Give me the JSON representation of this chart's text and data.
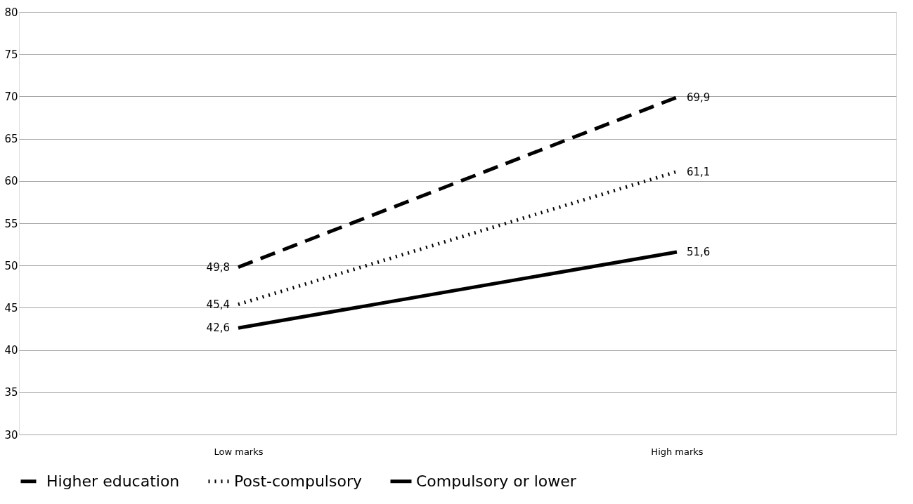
{
  "chart_data": {
    "type": "line",
    "categories": [
      "Low marks",
      "High marks"
    ],
    "series": [
      {
        "name": "Higher education",
        "color": "#000000",
        "line_style": "dashed",
        "values": [
          49.8,
          69.9
        ],
        "value_labels": [
          "49,8",
          "69,9"
        ]
      },
      {
        "name": "Post-compulsory",
        "color": "#000000",
        "line_style": "dotted",
        "values": [
          45.4,
          61.1
        ],
        "value_labels": [
          "45,4",
          "61,1"
        ]
      },
      {
        "name": "Compulsory or lower",
        "color": "#000000",
        "line_style": "solid",
        "values": [
          42.6,
          51.6
        ],
        "value_labels": [
          "42,6",
          "51,6"
        ]
      }
    ],
    "ylim": [
      30,
      80
    ],
    "yticks": [
      30,
      35,
      40,
      45,
      50,
      55,
      60,
      65,
      70,
      75,
      80
    ],
    "grid": "y",
    "legend": "bottom",
    "marker": "none"
  }
}
